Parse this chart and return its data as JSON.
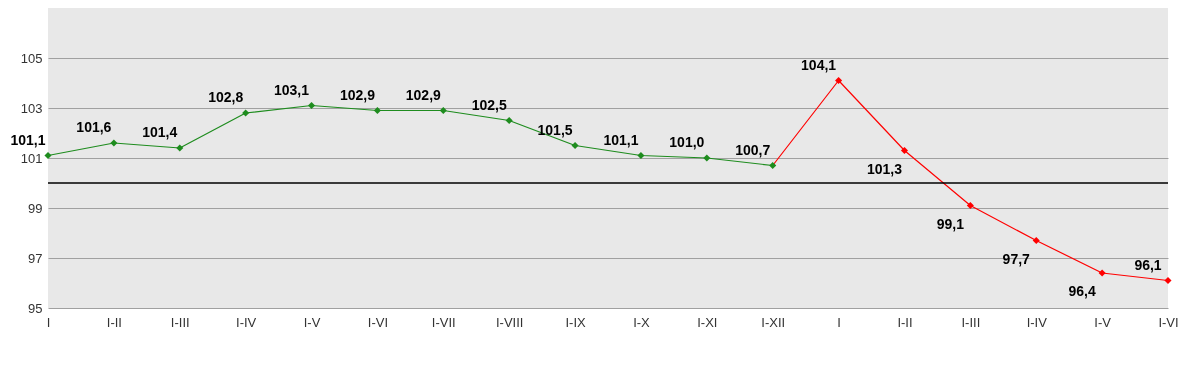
{
  "chart_data": {
    "type": "line",
    "categories": [
      "I",
      "I-II",
      "I-III",
      "I-IV",
      "I-V",
      "I-VI",
      "I-VII",
      "I-VIII",
      "I-IX",
      "I-X",
      "I-XI",
      "I-XII",
      "I",
      "I-II",
      "I-III",
      "I-IV",
      "I-V",
      "I-VI"
    ],
    "series": [
      {
        "color": "#1e8c1e",
        "values": [
          101.1,
          101.6,
          101.4,
          102.8,
          103.1,
          102.9,
          102.9,
          102.5,
          101.5,
          101.1,
          101.0,
          100.7,
          null,
          null,
          null,
          null,
          null,
          null
        ],
        "value_labels": [
          "101,1",
          "101,6",
          "101,4",
          "102,8",
          "103,1",
          "102,9",
          "102,9",
          "102,5",
          "101,5",
          "101,1",
          "101,0",
          "100,7",
          null,
          null,
          null,
          null,
          null,
          null
        ]
      },
      {
        "color": "#ff0000",
        "values": [
          null,
          null,
          null,
          null,
          null,
          null,
          null,
          null,
          null,
          null,
          null,
          100.7,
          104.1,
          101.3,
          99.1,
          97.7,
          96.4,
          96.1
        ],
        "value_labels": [
          null,
          null,
          null,
          null,
          null,
          null,
          null,
          null,
          null,
          null,
          null,
          null,
          "104,1",
          "101,3",
          "99,1",
          "97,7",
          "96,4",
          "96,1"
        ]
      }
    ],
    "ylim": [
      95,
      107
    ],
    "yticks": [
      95,
      97,
      99,
      101,
      103,
      105
    ],
    "grid": "y",
    "marker": "diamond",
    "line_style": "solid",
    "ref_lines": [
      {
        "axis": "y",
        "value": 100,
        "color": "#000000"
      }
    ]
  }
}
